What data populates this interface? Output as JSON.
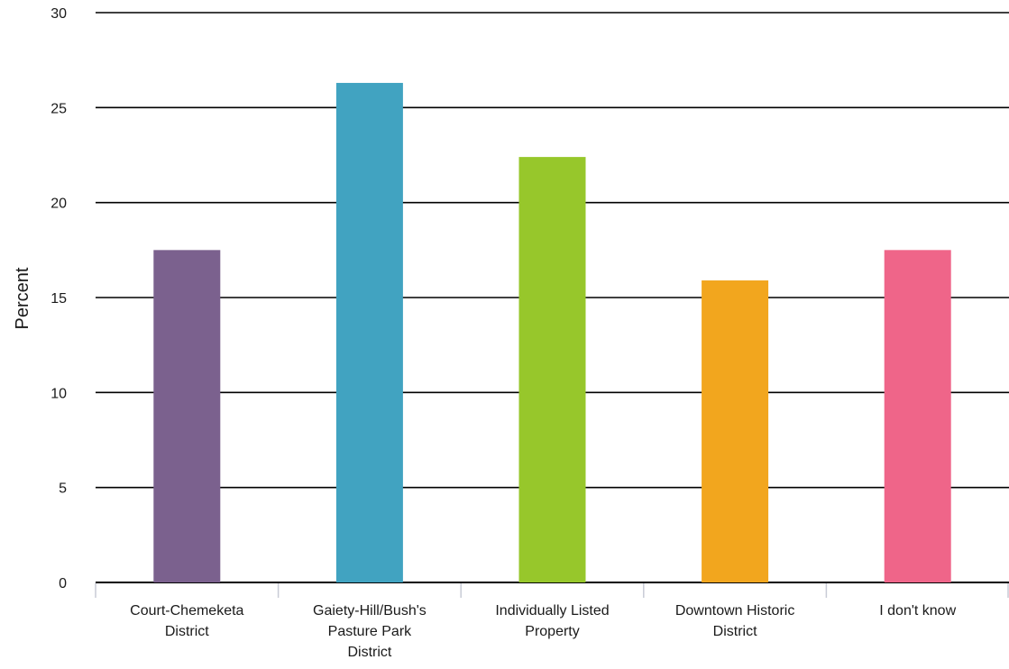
{
  "chart_data": {
    "type": "bar",
    "title": "",
    "xlabel": "",
    "ylabel": "Percent",
    "ylim": [
      0,
      30
    ],
    "yticks": [
      0,
      5,
      10,
      15,
      20,
      25,
      30
    ],
    "grid": true,
    "legend": "none",
    "categories": [
      [
        "Court-Chemeketa",
        "District"
      ],
      [
        "Gaiety-Hill/Bush's",
        "Pasture Park",
        "District"
      ],
      [
        "Individually Listed",
        "Property"
      ],
      [
        "Downtown Historic",
        "District"
      ],
      [
        "I don't know"
      ]
    ],
    "values": [
      17.5,
      26.3,
      22.4,
      15.9,
      17.5
    ],
    "colors": [
      "#7b618e",
      "#41a3c1",
      "#97c72b",
      "#f2a61e",
      "#ef6589"
    ]
  }
}
